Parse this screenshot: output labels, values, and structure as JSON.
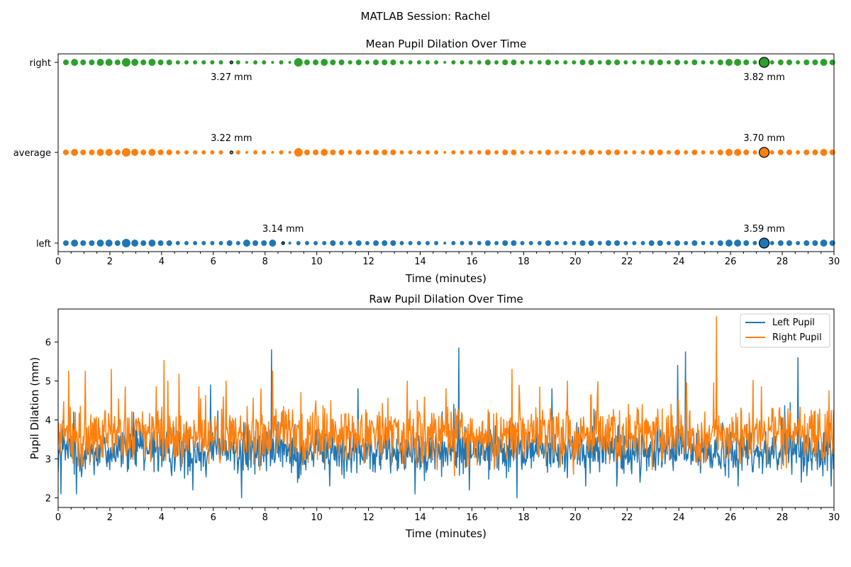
{
  "figure_title": "MATLAB Session: Rachel",
  "colors": {
    "left": "#1f77b4",
    "average": "#ff7f0e",
    "right": "#2ca02c",
    "marker_edge": "#000000",
    "axis": "#000000"
  },
  "chart_data": [
    {
      "type": "scatter",
      "title": "Mean Pupil Dilation Over Time",
      "xlabel": "Time (minutes)",
      "ylabel": "",
      "xlim": [
        0,
        30
      ],
      "x_ticks": [
        0,
        2,
        4,
        6,
        8,
        10,
        12,
        14,
        16,
        18,
        20,
        22,
        24,
        26,
        28,
        30
      ],
      "x_minor_step": 0.5,
      "categories": [
        "left",
        "average",
        "right"
      ],
      "marker_interval_min": 0.333,
      "marker_start_min": 0.3,
      "series": [
        {
          "name": "left",
          "color": "#1f77b4",
          "size_pattern": [
            4,
            5,
            4,
            4,
            5,
            5,
            4,
            6,
            5,
            4,
            5,
            4,
            4,
            3,
            3,
            3,
            3,
            3,
            3,
            4,
            3,
            5,
            4,
            4,
            5,
            3,
            2,
            3,
            3,
            3,
            3,
            4,
            3,
            3,
            4,
            3,
            4,
            4,
            4,
            3,
            3,
            3,
            3,
            3,
            2,
            3,
            3,
            3,
            3,
            4,
            3,
            4,
            4,
            3,
            3,
            3,
            4,
            3,
            3,
            3,
            4,
            4,
            3,
            4,
            4,
            3,
            3,
            3,
            4,
            4,
            3,
            4,
            3,
            4,
            3,
            3,
            4,
            5,
            5,
            4,
            3,
            4,
            3,
            4,
            4,
            3,
            4,
            4,
            5,
            4,
            3,
            3
          ],
          "min_marker": {
            "x": 8.7,
            "label": "3.14 mm"
          },
          "max_marker": {
            "x": 27.3,
            "label": "3.59 mm"
          }
        },
        {
          "name": "average",
          "color": "#ff7f0e",
          "size_pattern": [
            4,
            5,
            4,
            4,
            5,
            5,
            4,
            6,
            5,
            4,
            5,
            4,
            4,
            3,
            3,
            3,
            3,
            3,
            3,
            4,
            3,
            2,
            3,
            3,
            2,
            3,
            2,
            6,
            4,
            4,
            5,
            4,
            4,
            3,
            4,
            3,
            4,
            4,
            4,
            3,
            3,
            3,
            3,
            3,
            2,
            3,
            3,
            3,
            3,
            4,
            3,
            4,
            4,
            3,
            3,
            3,
            4,
            3,
            3,
            3,
            4,
            4,
            3,
            4,
            4,
            3,
            3,
            3,
            4,
            4,
            3,
            4,
            3,
            4,
            3,
            3,
            4,
            5,
            5,
            4,
            3,
            4,
            3,
            4,
            4,
            3,
            4,
            4,
            5,
            4,
            3,
            3
          ],
          "min_marker": {
            "x": 6.7,
            "label": "3.22 mm"
          },
          "max_marker": {
            "x": 27.3,
            "label": "3.70 mm"
          }
        },
        {
          "name": "right",
          "color": "#2ca02c",
          "size_pattern": [
            4,
            5,
            4,
            4,
            5,
            5,
            4,
            6,
            5,
            4,
            5,
            4,
            4,
            3,
            3,
            3,
            3,
            3,
            3,
            4,
            3,
            2,
            3,
            3,
            2,
            3,
            2,
            6,
            4,
            4,
            5,
            4,
            4,
            3,
            4,
            3,
            4,
            4,
            4,
            3,
            3,
            3,
            3,
            3,
            2,
            3,
            3,
            3,
            3,
            4,
            3,
            4,
            4,
            3,
            3,
            3,
            4,
            3,
            3,
            3,
            4,
            4,
            3,
            4,
            4,
            3,
            3,
            3,
            4,
            4,
            3,
            4,
            3,
            4,
            3,
            3,
            4,
            5,
            5,
            4,
            3,
            4,
            3,
            4,
            4,
            3,
            4,
            4,
            5,
            4,
            3,
            3
          ],
          "min_marker": {
            "x": 6.7,
            "label": "3.27 mm"
          },
          "max_marker": {
            "x": 27.3,
            "label": "3.82 mm"
          }
        }
      ]
    },
    {
      "type": "line",
      "title": "Raw Pupil Dilation Over Time",
      "xlabel": "Time (minutes)",
      "ylabel": "Pupil Dilation (mm)",
      "xlim": [
        0,
        30
      ],
      "ylim": [
        1.75,
        6.85
      ],
      "x_ticks": [
        0,
        2,
        4,
        6,
        8,
        10,
        12,
        14,
        16,
        18,
        20,
        22,
        24,
        26,
        28,
        30
      ],
      "x_minor_step": 0.5,
      "y_ticks": [
        2,
        3,
        4,
        5,
        6
      ],
      "legend_position": "top-right",
      "series": [
        {
          "name": "Left Pupil",
          "color": "#1f77b4",
          "baseline_mm": 3.2,
          "noise_mm": 0.45,
          "spikes": [
            [
              0.1,
              2.1
            ],
            [
              0.7,
              2.1
            ],
            [
              5.2,
              2.2
            ],
            [
              5.9,
              4.9
            ],
            [
              7.1,
              2.0
            ],
            [
              8.25,
              5.8
            ],
            [
              9.3,
              2.5
            ],
            [
              10.5,
              2.3
            ],
            [
              11.6,
              4.8
            ],
            [
              13.8,
              2.1
            ],
            [
              15.5,
              5.85
            ],
            [
              15.9,
              2.2
            ],
            [
              17.75,
              2.0
            ],
            [
              19.1,
              4.8
            ],
            [
              20.4,
              2.3
            ],
            [
              21.6,
              2.3
            ],
            [
              22.5,
              2.4
            ],
            [
              23.95,
              5.4
            ],
            [
              24.25,
              5.75
            ],
            [
              26.3,
              2.3
            ],
            [
              28.6,
              5.6
            ],
            [
              29.9,
              2.3
            ]
          ]
        },
        {
          "name": "Right Pupil",
          "color": "#ff7f0e",
          "baseline_mm": 3.6,
          "noise_mm": 0.55,
          "spikes": [
            [
              0.4,
              5.25
            ],
            [
              1.05,
              5.25
            ],
            [
              2.05,
              5.3
            ],
            [
              2.6,
              4.85
            ],
            [
              3.8,
              4.85
            ],
            [
              4.25,
              5.0
            ],
            [
              5.45,
              4.85
            ],
            [
              6.5,
              5.0
            ],
            [
              7.85,
              4.8
            ],
            [
              8.3,
              5.25
            ],
            [
              13.5,
              5.0
            ],
            [
              15.0,
              4.8
            ],
            [
              17.55,
              5.3
            ],
            [
              19.7,
              5.0
            ],
            [
              24.3,
              4.95
            ],
            [
              25.45,
              6.65
            ],
            [
              27.2,
              4.85
            ],
            [
              29.8,
              4.75
            ]
          ]
        }
      ]
    }
  ]
}
